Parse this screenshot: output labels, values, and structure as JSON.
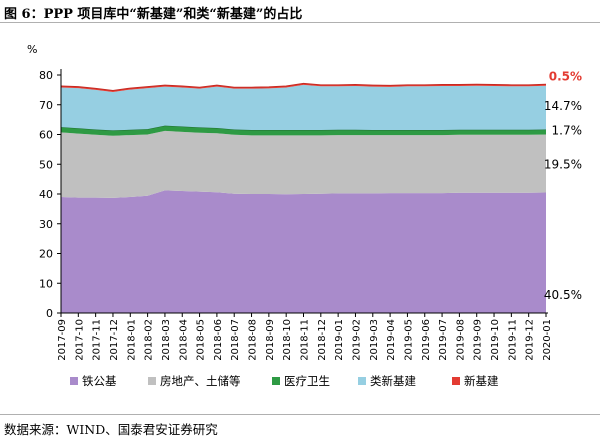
{
  "header": {
    "title": "图 6：PPP 项目库中“新基建”和类“新基建”的占比"
  },
  "footer": {
    "source": "数据来源：WIND、国泰君安证券研究"
  },
  "chart_data": {
    "type": "area",
    "stacked": true,
    "ylabel": "%",
    "ylim": [
      0,
      80
    ],
    "yticks": [
      0,
      10,
      20,
      30,
      40,
      50,
      60,
      70,
      80
    ],
    "grid": false,
    "legend_position": "bottom",
    "x": [
      "2017-09",
      "2017-10",
      "2017-11",
      "2017-12",
      "2018-01",
      "2018-02",
      "2018-03",
      "2018-04",
      "2018-05",
      "2018-06",
      "2018-07",
      "2018-08",
      "2018-09",
      "2018-10",
      "2018-11",
      "2018-12",
      "2019-01",
      "2019-02",
      "2019-03",
      "2019-04",
      "2019-05",
      "2019-06",
      "2019-07",
      "2019-08",
      "2019-09",
      "2019-10",
      "2019-11",
      "2019-12",
      "2020-01"
    ],
    "series": [
      {
        "name": "铁公基",
        "color": "#a98bcb",
        "values": [
          39.0,
          38.8,
          38.8,
          38.7,
          39.0,
          39.4,
          41.2,
          41.0,
          40.8,
          40.6,
          40.1,
          40.0,
          40.0,
          39.9,
          40.0,
          40.1,
          40.2,
          40.2,
          40.2,
          40.3,
          40.3,
          40.3,
          40.3,
          40.4,
          40.4,
          40.4,
          40.4,
          40.4,
          40.5
        ],
        "end_label": "40.5%"
      },
      {
        "name": "房地产、土储等",
        "color": "#c0c0c0",
        "values": [
          21.7,
          21.5,
          21.1,
          20.9,
          20.8,
          20.6,
          20.0,
          19.9,
          19.8,
          19.8,
          19.8,
          19.7,
          19.7,
          19.8,
          19.7,
          19.6,
          19.6,
          19.6,
          19.6,
          19.5,
          19.5,
          19.5,
          19.5,
          19.5,
          19.5,
          19.5,
          19.5,
          19.5,
          19.5
        ],
        "end_label": "19.5%"
      },
      {
        "name": "医疗卫生",
        "color": "#2e9a44",
        "values": [
          1.8,
          1.8,
          1.8,
          1.8,
          1.8,
          1.8,
          1.8,
          1.8,
          1.8,
          1.8,
          1.8,
          1.8,
          1.8,
          1.8,
          1.8,
          1.8,
          1.8,
          1.8,
          1.7,
          1.7,
          1.7,
          1.7,
          1.7,
          1.7,
          1.7,
          1.7,
          1.7,
          1.7,
          1.7
        ],
        "end_label": "1.7%"
      },
      {
        "name": "类新基建",
        "color": "#96cfe2",
        "values": [
          13.3,
          13.5,
          13.3,
          12.9,
          13.5,
          13.8,
          13.1,
          13.1,
          13.0,
          13.9,
          13.7,
          13.9,
          14.0,
          14.3,
          15.2,
          14.7,
          14.6,
          14.7,
          14.6,
          14.5,
          14.7,
          14.7,
          14.8,
          14.7,
          14.8,
          14.7,
          14.6,
          14.6,
          14.7
        ],
        "end_label": "14.7%"
      },
      {
        "name": "新基建",
        "color": "#e33b32",
        "values": [
          0.5,
          0.5,
          0.5,
          0.5,
          0.5,
          0.5,
          0.5,
          0.5,
          0.5,
          0.5,
          0.5,
          0.5,
          0.5,
          0.5,
          0.5,
          0.5,
          0.5,
          0.5,
          0.5,
          0.5,
          0.5,
          0.5,
          0.5,
          0.5,
          0.5,
          0.5,
          0.5,
          0.5,
          0.5
        ],
        "end_label": "0.5%",
        "end_label_color": "#e33b32"
      }
    ]
  }
}
